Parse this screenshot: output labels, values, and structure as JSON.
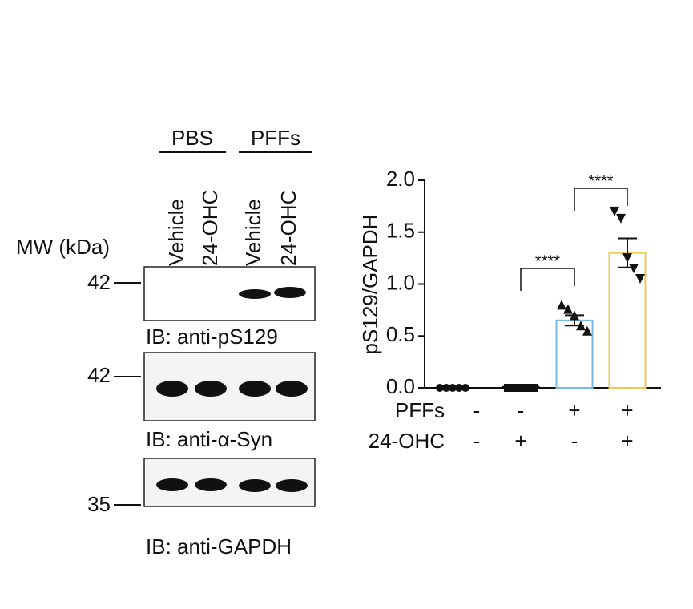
{
  "blot": {
    "groups": [
      "PBS",
      "PFFs"
    ],
    "lanes": [
      "Vehicle",
      "24-OHC",
      "Vehicle",
      "24-OHC"
    ],
    "mw_label": "MW (kDa)",
    "panels": [
      {
        "marker": "42",
        "label": "IB: anti-pS129"
      },
      {
        "marker": "42",
        "label": "IB: anti-α-Syn"
      },
      {
        "marker": "35",
        "label": "IB: anti-GAPDH"
      }
    ]
  },
  "chart_data": {
    "type": "bar",
    "y_label": "pS129/GAPDH",
    "categories": [
      null,
      null,
      null,
      null
    ],
    "values": [
      0.0,
      0.01,
      0.65,
      1.3
    ],
    "errors": [
      0.0,
      0.0,
      0.05,
      0.14
    ],
    "colors": [
      "#000000",
      "#000000",
      "#7ab8e6",
      "#f0c85a"
    ],
    "points": [
      [
        0,
        0,
        0,
        0,
        0
      ],
      [
        0,
        0,
        0,
        0,
        0
      ],
      [
        0.8,
        0.76,
        0.7,
        0.6,
        0.55
      ],
      [
        1.7,
        1.63,
        1.25,
        1.15,
        1.05
      ]
    ],
    "conditions": [
      {
        "name": "PFFs",
        "values": [
          "-",
          "-",
          "+",
          "+"
        ]
      },
      {
        "name": "24-OHC",
        "values": [
          "-",
          "+",
          "-",
          "+"
        ]
      }
    ],
    "annotations": [
      "****",
      "****"
    ],
    "ylim": [
      0,
      2.0
    ],
    "yticks": [
      {
        "value": 0,
        "label": "0.0"
      },
      0.5,
      {
        "value": 1,
        "label": "1.0"
      },
      1.5,
      {
        "value": 2,
        "label": "2.0"
      }
    ]
  }
}
